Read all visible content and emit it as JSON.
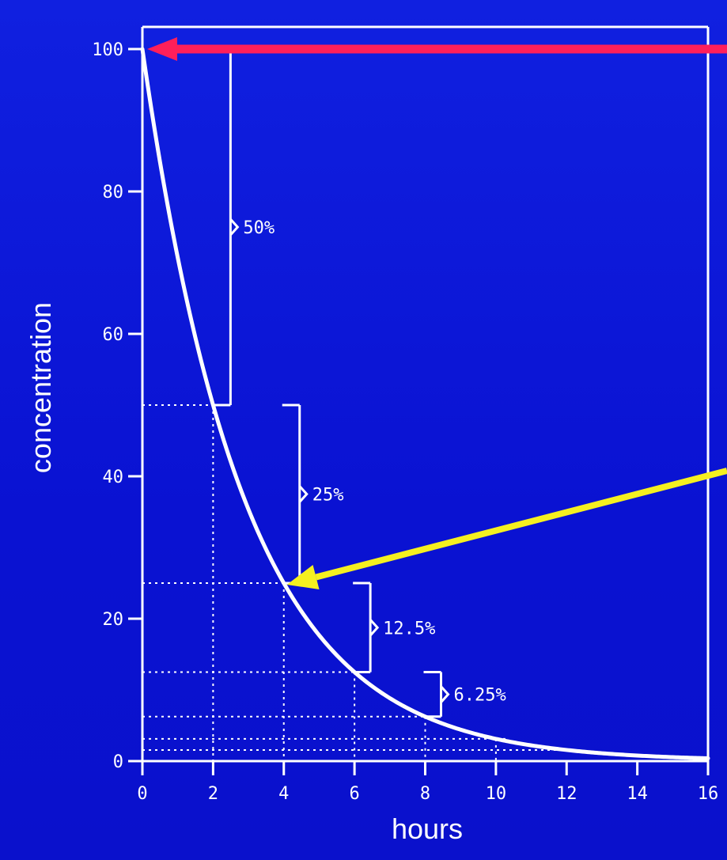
{
  "chart_data": {
    "type": "line",
    "xlabel": "hours",
    "ylabel": "concentration",
    "xlim": [
      0,
      16
    ],
    "ylim": [
      0,
      100
    ],
    "x_ticks": [
      0,
      2,
      4,
      6,
      8,
      10,
      12,
      14,
      16
    ],
    "y_ticks": [
      0,
      20,
      40,
      60,
      80,
      100
    ],
    "grid": false,
    "series": [
      {
        "half_life_hours": 2,
        "x": [
          0,
          1,
          2,
          3,
          4,
          5,
          6,
          7,
          8,
          9,
          10,
          11,
          12,
          13,
          14,
          15,
          16
        ],
        "values": [
          100,
          70.7,
          50,
          35.4,
          25,
          17.7,
          12.5,
          8.8,
          6.25,
          4.4,
          3.1,
          2.2,
          1.6,
          1.1,
          0.8,
          0.55,
          0.4
        ]
      }
    ],
    "reference_levels": [
      50,
      25,
      12.5,
      6.25,
      3.125,
      1.5625
    ],
    "reference_times": [
      2,
      4,
      6,
      8,
      10
    ],
    "annotations": [
      {
        "text": "50%",
        "from": 100,
        "to": 50
      },
      {
        "text": "25%",
        "from": 50,
        "to": 25
      },
      {
        "text": "12.5%",
        "from": 25,
        "to": 12.5
      },
      {
        "text": "6.25%",
        "from": 12.5,
        "to": 6.25
      }
    ],
    "arrows": [
      {
        "color": "#ff1f5a",
        "target_x": 0,
        "target_y": 100
      },
      {
        "color": "#f5f020",
        "target_x": 4,
        "target_y": 25
      }
    ]
  }
}
